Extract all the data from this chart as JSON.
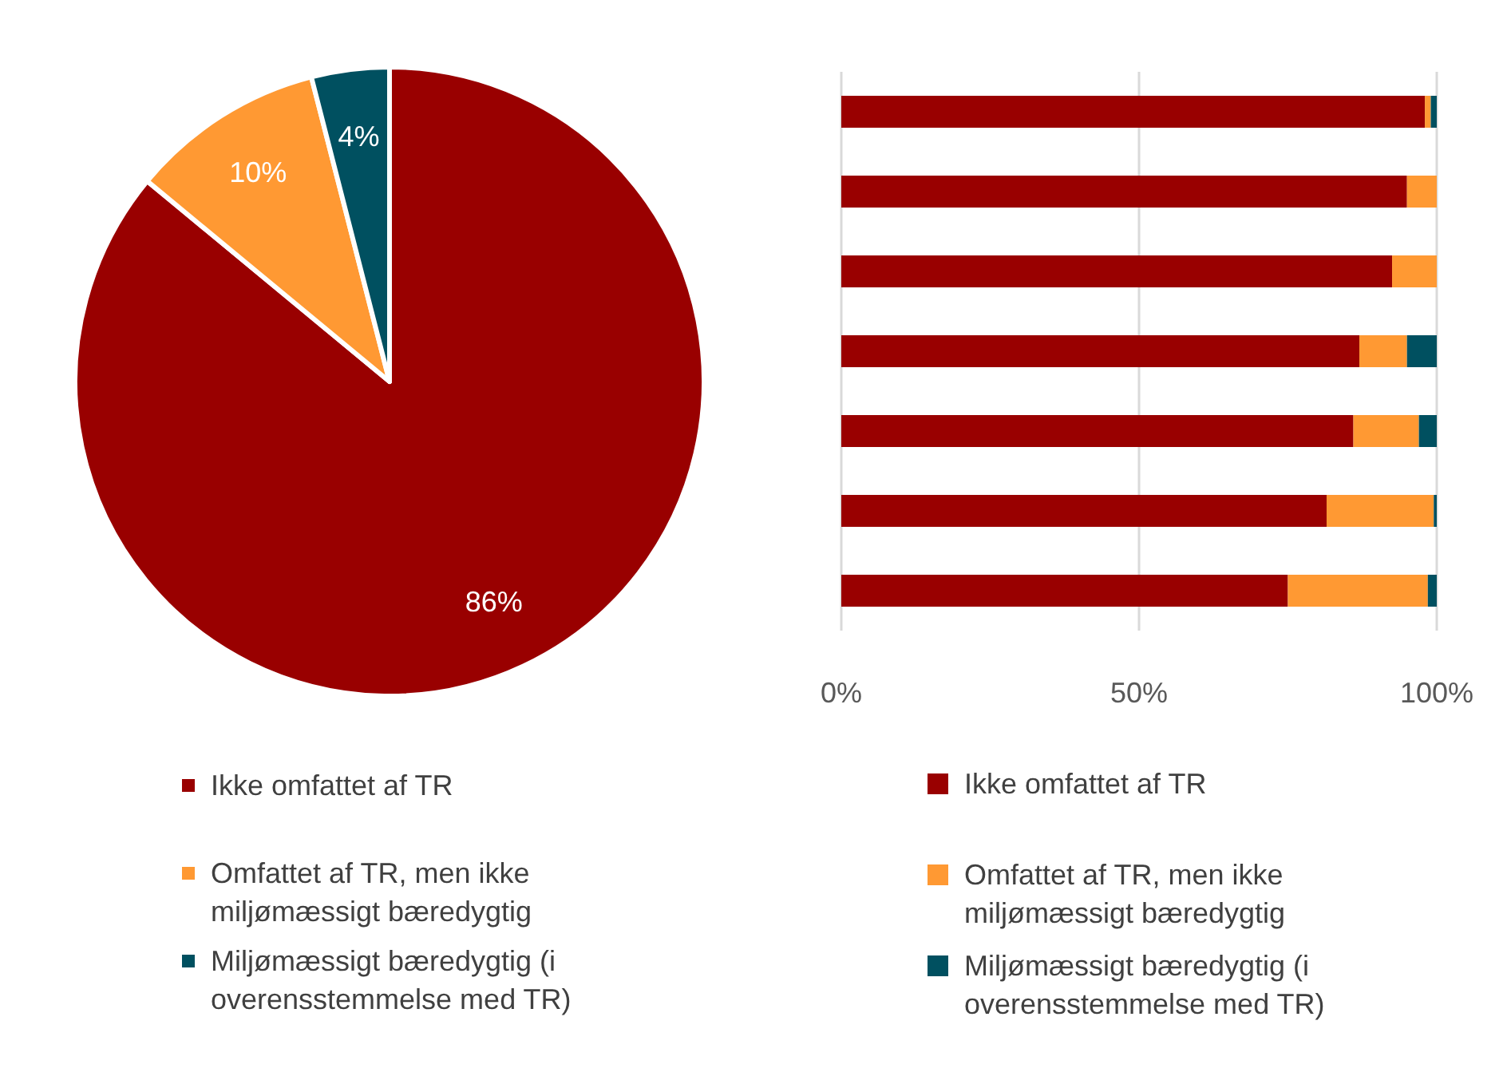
{
  "chart_data": [
    {
      "type": "pie",
      "categories": [
        "Ikke omfattet af TR",
        "Omfattet af TR, men ikke miljømæssigt bæredygtig",
        "Miljømæssigt bæredygtig (i overensstemmelse med TR)"
      ],
      "values": [
        86,
        10,
        4
      ],
      "colors": [
        "#990000",
        "#ff9933",
        "#005060"
      ],
      "value_labels": [
        "86%",
        "10%",
        "4%"
      ],
      "legend": "bottom"
    },
    {
      "type": "bar",
      "orientation": "horizontal",
      "stacked": true,
      "categories": [
        null,
        null,
        null,
        null,
        null,
        null,
        null
      ],
      "series": [
        {
          "name": "Ikke omfattet af TR",
          "color": "#990000",
          "values": [
            98,
            95,
            92.5,
            87,
            86,
            81.5,
            75
          ]
        },
        {
          "name": "Omfattet af TR, men ikke miljømæssigt bæredygtig",
          "color": "#ff9933",
          "values": [
            1,
            5,
            7.5,
            8,
            11,
            18,
            23.5
          ]
        },
        {
          "name": "Miljømæssigt bæredygtig (i overensstemmelse med TR)",
          "color": "#005060",
          "values": [
            1,
            0,
            0,
            5,
            3,
            0.5,
            1.5
          ]
        }
      ],
      "xlim": [
        0,
        100
      ],
      "xticks": [
        {
          "value": 0,
          "label": "0%"
        },
        {
          "value": 50,
          "label": "50%"
        },
        {
          "value": 100,
          "label": "100%"
        }
      ],
      "grid": "x",
      "legend": "bottom"
    }
  ]
}
